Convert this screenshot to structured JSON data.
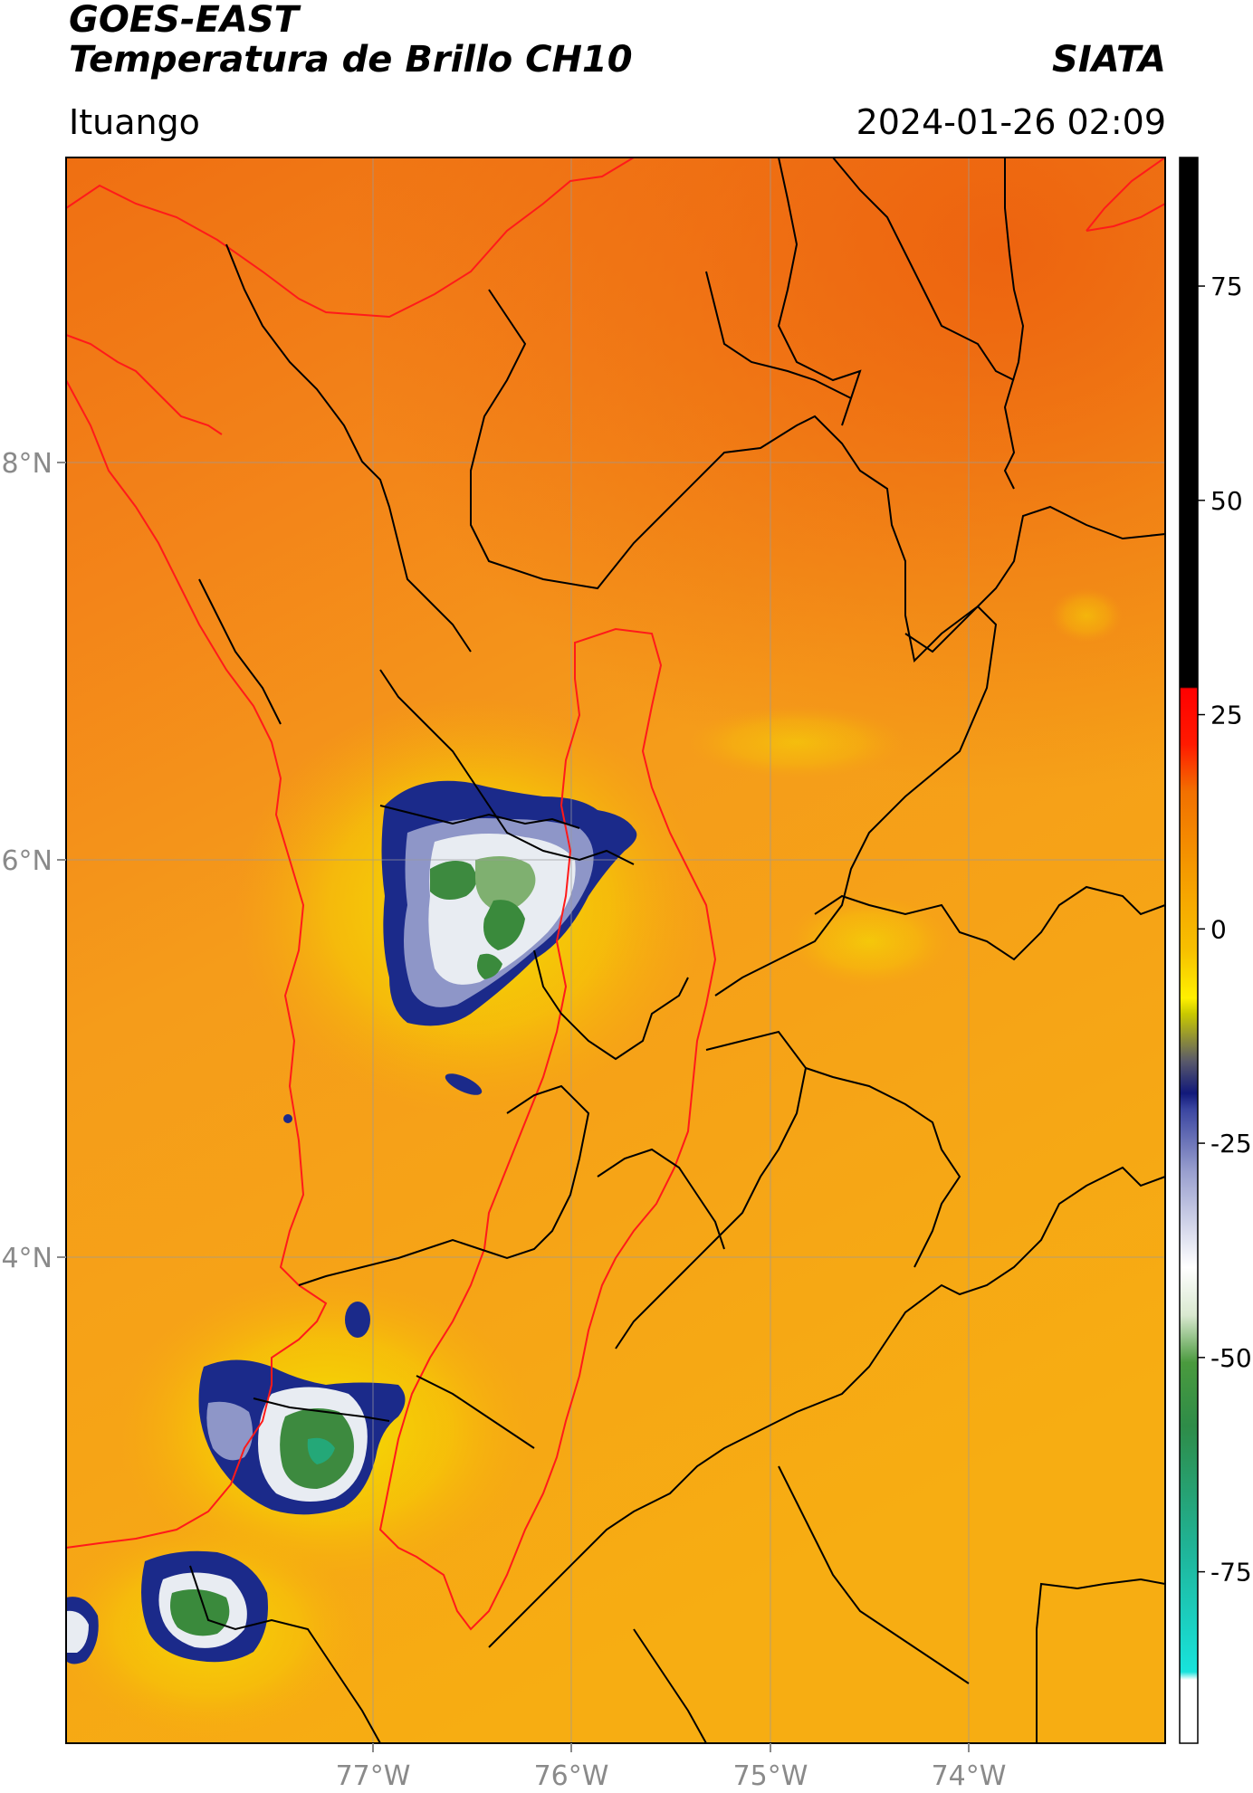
{
  "header": {
    "title_line1": "GOES-EAST",
    "title_line2": "Temperatura de Brillo CH10",
    "organization": "SIATA",
    "location": "Ituango",
    "datetime": "2024-01-26 02:09"
  },
  "map": {
    "lon_labels": [
      "77°W",
      "76°W",
      "75°W",
      "74°W"
    ],
    "lat_labels": [
      "8°N",
      "6°N",
      "4°N"
    ],
    "extent": {
      "lon_min": -78.55,
      "lon_max": -73.0,
      "lat_min": 2.15,
      "lat_max": 9.55
    }
  },
  "colorbar": {
    "ticks": [
      "75",
      "50",
      "25",
      "0",
      "-25",
      "-50",
      "-75"
    ],
    "tick_values": [
      75,
      50,
      25,
      0,
      -25,
      -50,
      -75
    ],
    "range": [
      -95,
      90
    ]
  },
  "colors": {
    "background_warm": "#f58a1b",
    "background_hot": "#ee6a10",
    "background_yellow": "#f7b50f",
    "cloud_blue": "#1b2a8a",
    "cloud_green": "#3a8a3c",
    "border_black": "#000000",
    "border_red": "#ff1a1a"
  }
}
